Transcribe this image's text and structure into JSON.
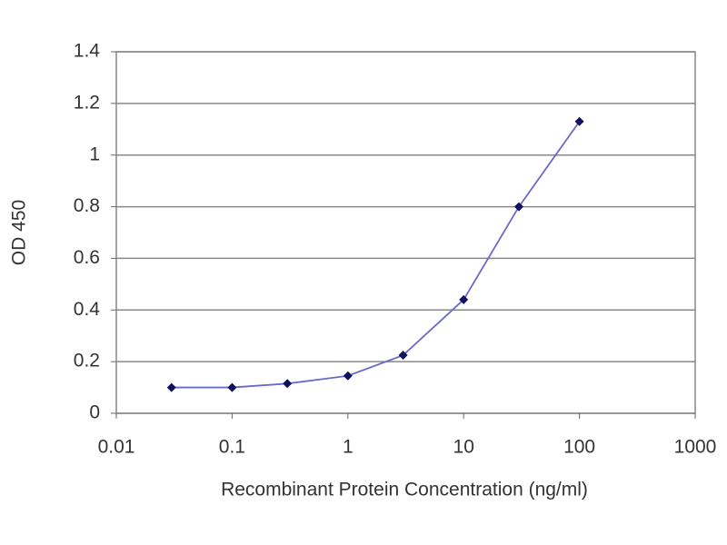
{
  "chart_data": {
    "type": "line",
    "xlabel": "Recombinant Protein Concentration (ng/ml)",
    "ylabel": "OD 450",
    "x": [
      0.03,
      0.1,
      0.3,
      1,
      3,
      10,
      30,
      100
    ],
    "series": [
      {
        "color": "#6a6ac8",
        "marker_color": "#101060",
        "values": [
          0.1,
          0.1,
          0.115,
          0.145,
          0.225,
          0.44,
          0.8,
          1.13
        ]
      }
    ],
    "xscale": "log",
    "xlim": [
      0.01,
      1000
    ],
    "xticks": [
      0.01,
      0.1,
      1,
      10,
      100,
      1000
    ],
    "ylim": [
      0,
      1.4
    ],
    "yticks": [
      0,
      0.2,
      0.4,
      0.6,
      0.8,
      1,
      1.2,
      1.4
    ],
    "grid": true
  }
}
